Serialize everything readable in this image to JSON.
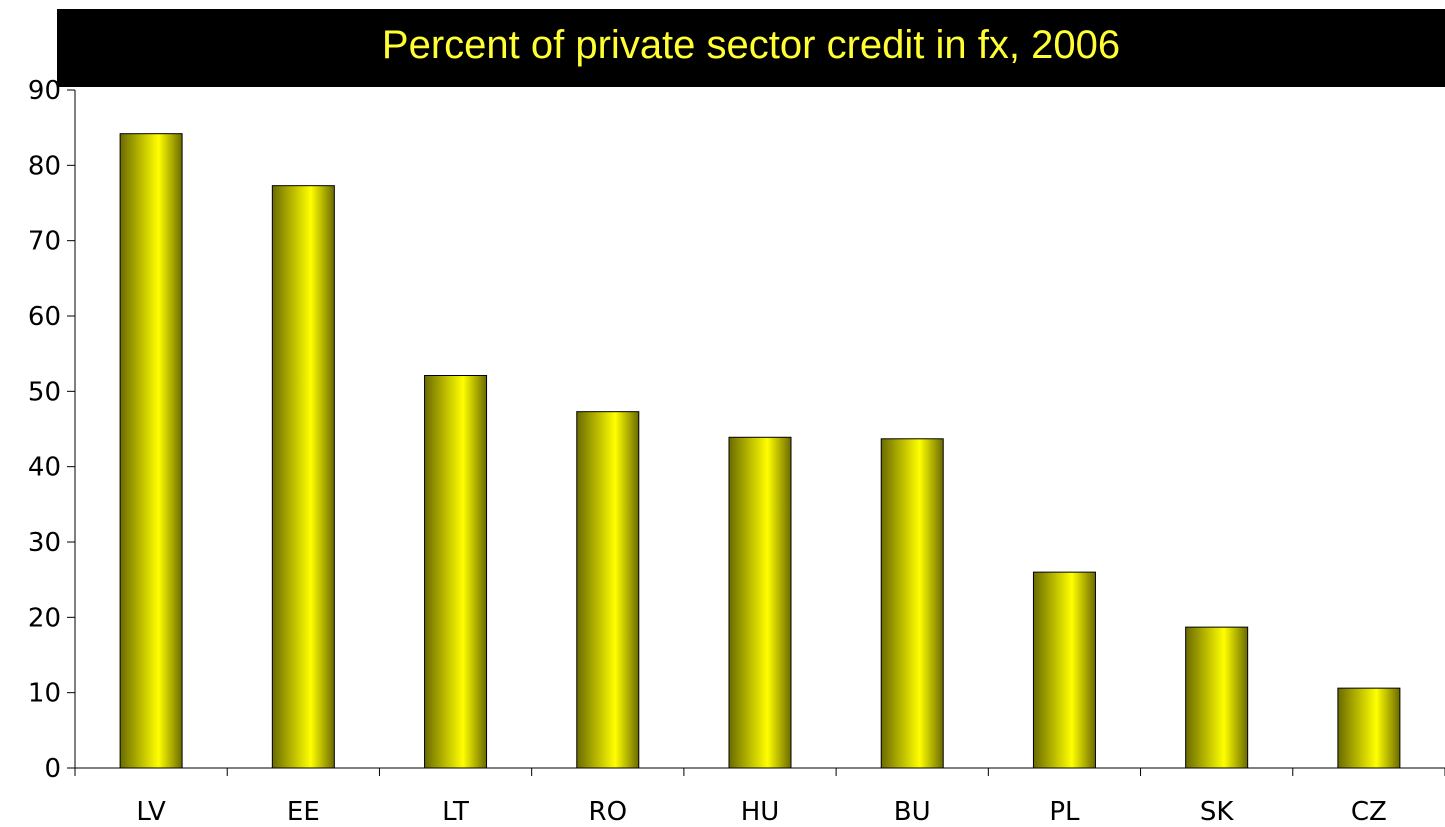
{
  "chart_data": {
    "type": "bar",
    "title": "Percent of private sector credit in fx, 2006",
    "xlabel": "",
    "ylabel": "",
    "categories": [
      "LV",
      "EE",
      "LT",
      "RO",
      "HU",
      "BU",
      "PL",
      "SK",
      "CZ"
    ],
    "values": [
      84.2,
      77.3,
      52.1,
      47.3,
      43.9,
      43.7,
      26.0,
      18.7,
      10.6
    ],
    "ylim": [
      0,
      90
    ],
    "yticks": [
      0,
      10,
      20,
      30,
      40,
      50,
      60,
      70,
      80,
      90
    ],
    "grid": false,
    "legend": "none",
    "colors": {
      "bar_light": "#ffff00",
      "bar_dark": "#6b6b00",
      "bar_edge": "#000000",
      "title_bg": "#000000",
      "title_text": "#ffff33",
      "axis": "#000000"
    }
  }
}
